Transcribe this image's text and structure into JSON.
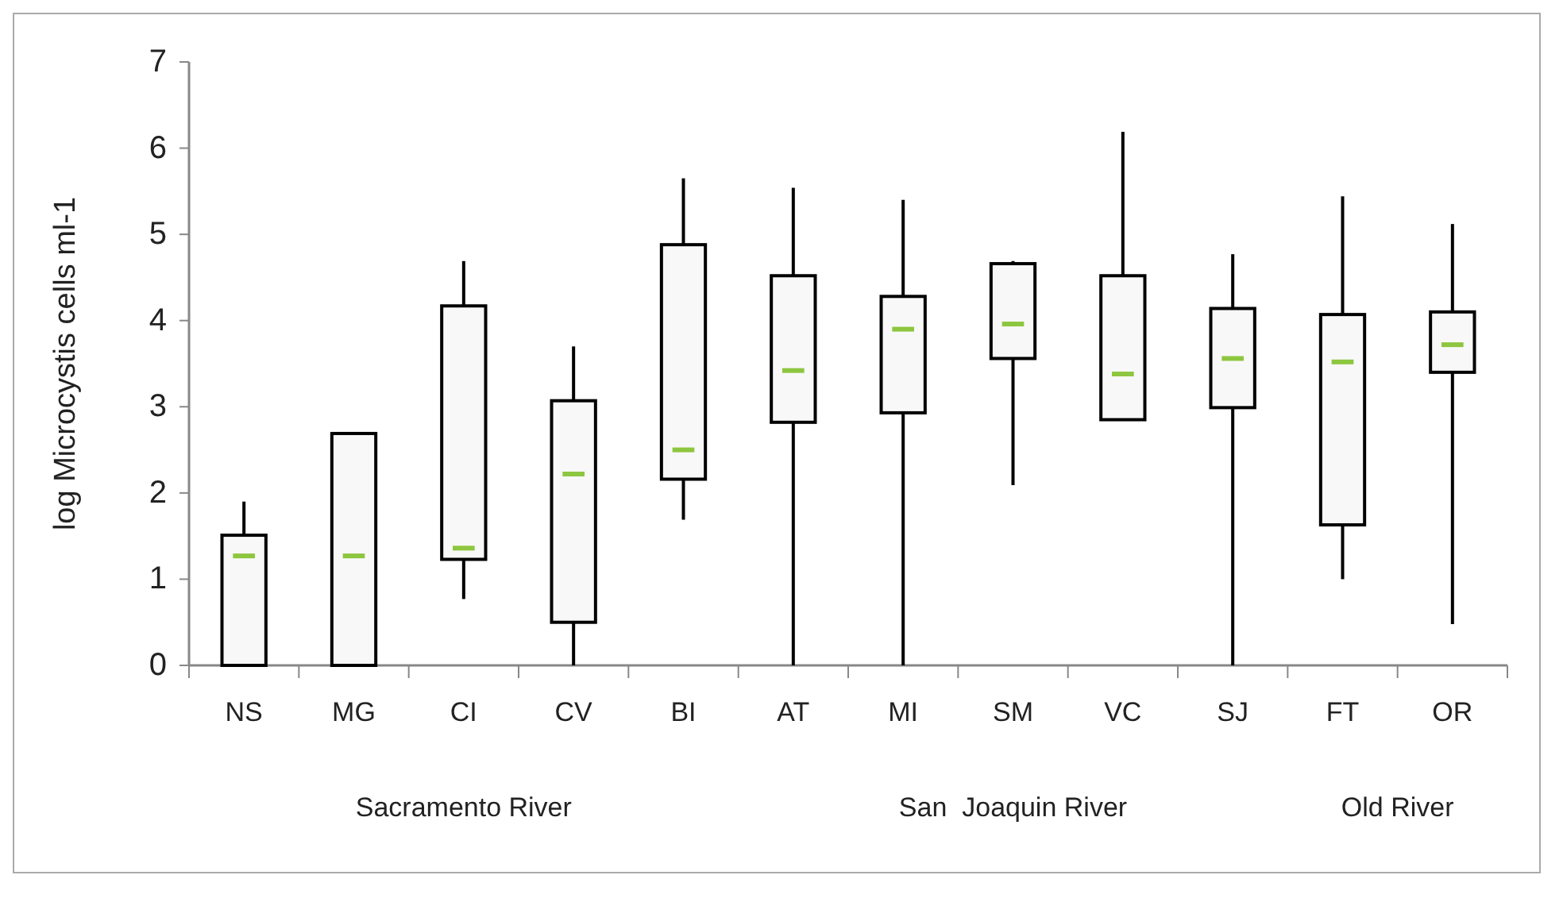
{
  "chart_data": {
    "type": "box",
    "ylabel": "log Microcystis cells ml-1",
    "categories": [
      "NS",
      "MG",
      "CI",
      "CV",
      "BI",
      "AT",
      "MI",
      "SM",
      "VC",
      "SJ",
      "FT",
      "OR"
    ],
    "boxes": [
      {
        "low": 0,
        "q1": 0,
        "median": 1.27,
        "q3": 1.51,
        "high": 1.9
      },
      {
        "low": 0,
        "q1": 0,
        "median": 1.27,
        "q3": 2.69,
        "high": 2.69
      },
      {
        "low": 0.77,
        "q1": 1.23,
        "median": 1.36,
        "q3": 4.17,
        "high": 4.69
      },
      {
        "low": 0,
        "q1": 0.5,
        "median": 2.22,
        "q3": 3.07,
        "high": 3.7
      },
      {
        "low": 1.69,
        "q1": 2.16,
        "median": 2.5,
        "q3": 4.88,
        "high": 5.65
      },
      {
        "low": 0,
        "q1": 2.82,
        "median": 3.42,
        "q3": 4.52,
        "high": 5.54
      },
      {
        "low": 0,
        "q1": 2.93,
        "median": 3.9,
        "q3": 4.28,
        "high": 5.4
      },
      {
        "low": 2.09,
        "q1": 3.56,
        "median": 3.96,
        "q3": 4.66,
        "high": 4.69
      },
      {
        "low": 2.85,
        "q1": 2.85,
        "median": 3.38,
        "q3": 4.52,
        "high": 6.19
      },
      {
        "low": 0,
        "q1": 2.99,
        "median": 3.56,
        "q3": 4.14,
        "high": 4.77
      },
      {
        "low": 1.0,
        "q1": 1.63,
        "median": 3.52,
        "q3": 4.07,
        "high": 5.44
      },
      {
        "low": 0.48,
        "q1": 3.4,
        "median": 3.72,
        "q3": 4.1,
        "high": 5.12
      }
    ],
    "color": "#f8f8f8",
    "ylim": [
      0,
      7
    ],
    "yticks": [
      0,
      1,
      2,
      3,
      4,
      5,
      6,
      7
    ],
    "annotations": [
      "Sacramento River",
      "San  Joaquin River",
      "Old River"
    ]
  }
}
